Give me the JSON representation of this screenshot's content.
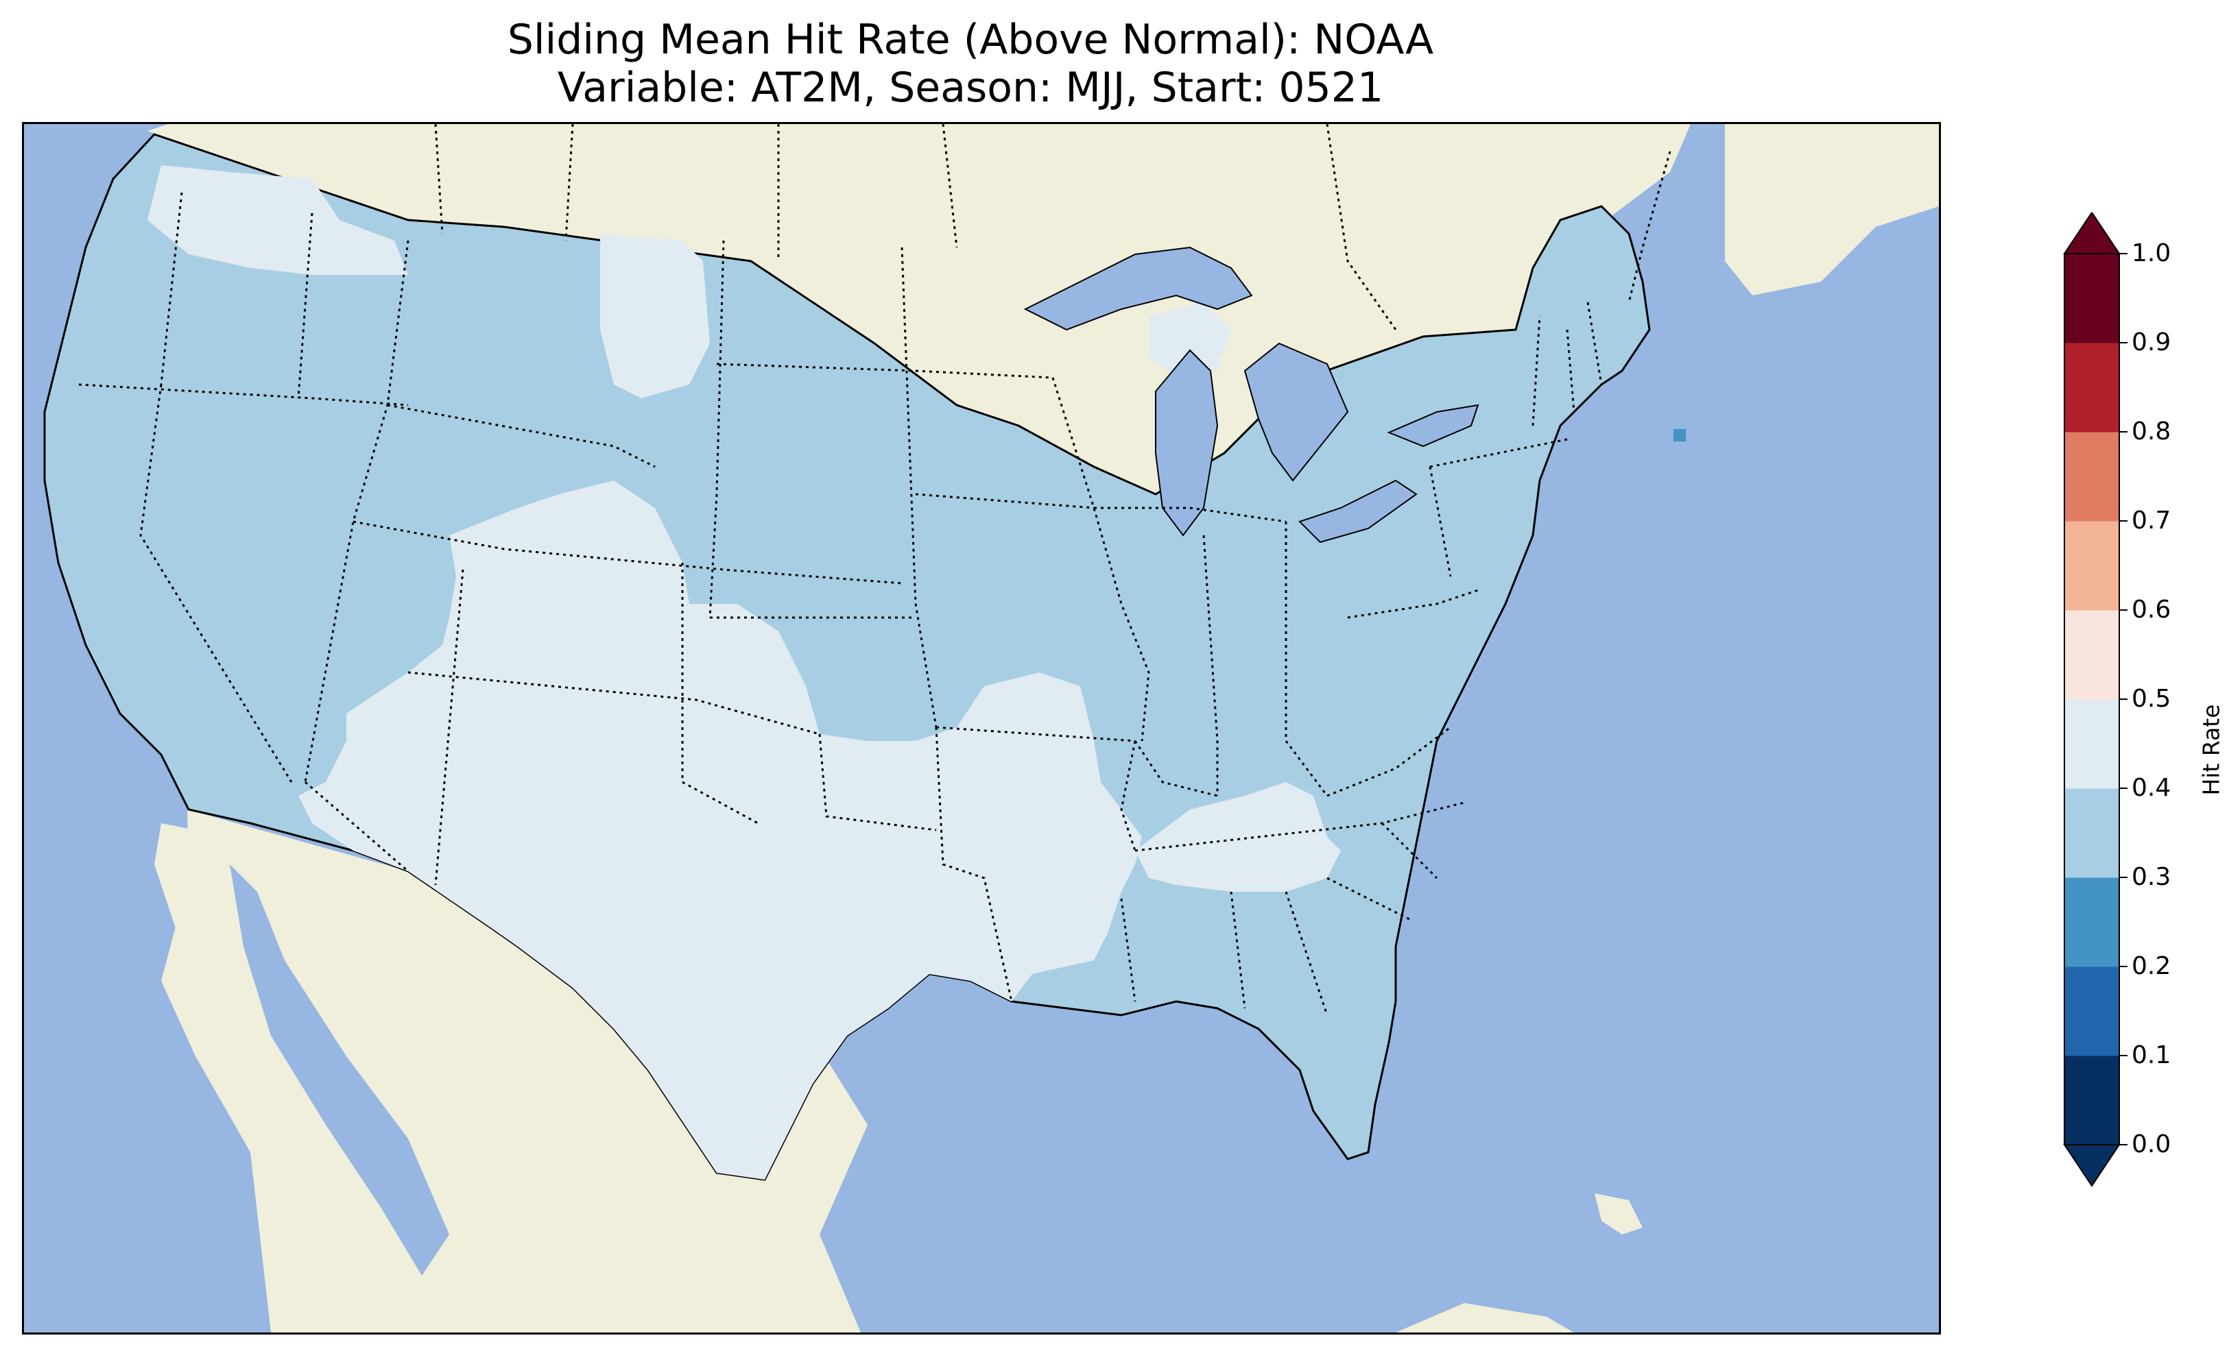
{
  "title": {
    "line1": "Sliding Mean Hit Rate (Above Normal): NOAA",
    "line2": "Variable: AT2M, Season: MJJ, Start: 0521"
  },
  "colors": {
    "ocean": "#97b6e1",
    "foreign_land": "#efefdb",
    "state_border": "#000000"
  },
  "map": {
    "region": "Contiguous United States",
    "projection": "Lambert Conformal",
    "fill_by_region": [
      {
        "region": "Northwest, Northern Plains, Midwest, Northeast, Southeast",
        "bin": "0.3-0.4"
      },
      {
        "region": "Southwest, Southern Rockies, Texas, Oklahoma",
        "bin": "0.4-0.5"
      },
      {
        "region": "Coastal Washington, Northern Idaho, Eastern Montana",
        "bin": "0.4-0.5"
      },
      {
        "region": "Central Tennessee, Southern Missouri",
        "bin": "0.4-0.5"
      },
      {
        "region": "Southern New England coast",
        "bin": "0.2-0.3"
      }
    ]
  },
  "colorbar": {
    "label": "Hit Rate",
    "ticks": [
      "0.0",
      "0.1",
      "0.2",
      "0.3",
      "0.4",
      "0.5",
      "0.6",
      "0.7",
      "0.8",
      "0.9",
      "1.0"
    ],
    "bins": [
      {
        "range": [
          0.0,
          0.1
        ],
        "color": "#053061"
      },
      {
        "range": [
          0.1,
          0.2
        ],
        "color": "#2166ac"
      },
      {
        "range": [
          0.2,
          0.3
        ],
        "color": "#4393c3"
      },
      {
        "range": [
          0.3,
          0.4
        ],
        "color": "#a8cee3"
      },
      {
        "range": [
          0.4,
          0.5
        ],
        "color": "#e1ebf2"
      },
      {
        "range": [
          0.5,
          0.6
        ],
        "color": "#f8e5dd"
      },
      {
        "range": [
          0.6,
          0.7
        ],
        "color": "#f4b596"
      },
      {
        "range": [
          0.7,
          0.8
        ],
        "color": "#e07c62"
      },
      {
        "range": [
          0.8,
          0.9
        ],
        "color": "#b2202d"
      },
      {
        "range": [
          0.9,
          1.0
        ],
        "color": "#67001f"
      }
    ],
    "extend": "both"
  }
}
